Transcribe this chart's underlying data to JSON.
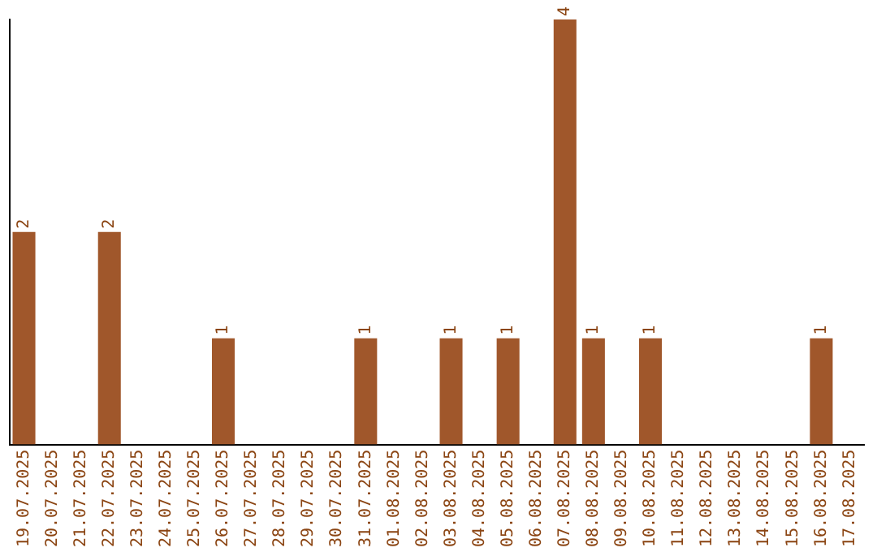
{
  "chart_data": {
    "type": "bar",
    "categories": [
      "19.07.2025",
      "20.07.2025",
      "21.07.2025",
      "22.07.2025",
      "23.07.2025",
      "24.07.2025",
      "25.07.2025",
      "26.07.2025",
      "27.07.2025",
      "28.07.2025",
      "29.07.2025",
      "30.07.2025",
      "31.07.2025",
      "01.08.2025",
      "02.08.2025",
      "03.08.2025",
      "04.08.2025",
      "05.08.2025",
      "06.08.2025",
      "07.08.2025",
      "08.08.2025",
      "09.08.2025",
      "10.08.2025",
      "11.08.2025",
      "12.08.2025",
      "13.08.2025",
      "14.08.2025",
      "15.08.2025",
      "16.08.2025",
      "17.08.2025"
    ],
    "values": [
      2,
      0,
      0,
      2,
      0,
      0,
      0,
      1,
      0,
      0,
      0,
      0,
      1,
      0,
      0,
      1,
      0,
      1,
      0,
      4,
      1,
      0,
      1,
      0,
      0,
      0,
      0,
      0,
      1,
      0
    ],
    "value_labels": [
      "2",
      null,
      null,
      "2",
      null,
      null,
      null,
      "1",
      null,
      null,
      null,
      null,
      "1",
      null,
      null,
      "1",
      null,
      "1",
      null,
      "4",
      "1",
      null,
      "1",
      null,
      null,
      null,
      null,
      null,
      "1",
      null
    ],
    "color": "#a0572b",
    "grid": false,
    "legend": false,
    "tick_labels": "x"
  }
}
